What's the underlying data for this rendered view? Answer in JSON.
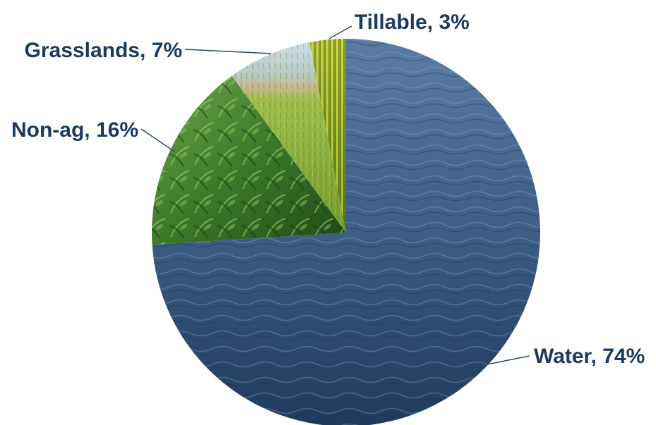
{
  "chart_data": {
    "type": "pie",
    "title": "",
    "slices": [
      {
        "label": "Water",
        "value": 74,
        "display": "Water, 74%",
        "color": "#34557a",
        "texture": "water"
      },
      {
        "label": "Non-ag",
        "value": 16,
        "display": "Non-ag, 16%",
        "color": "#3f7a2e",
        "texture": "jungle"
      },
      {
        "label": "Grasslands",
        "value": 7,
        "display": "Grasslands, 7%",
        "color": "#9db84a",
        "texture": "grassland"
      },
      {
        "label": "Tillable",
        "value": 3,
        "display": "Tillable, 3%",
        "color": "#8ea32a",
        "texture": "crops"
      }
    ],
    "label_color": "#1d3a5c"
  }
}
